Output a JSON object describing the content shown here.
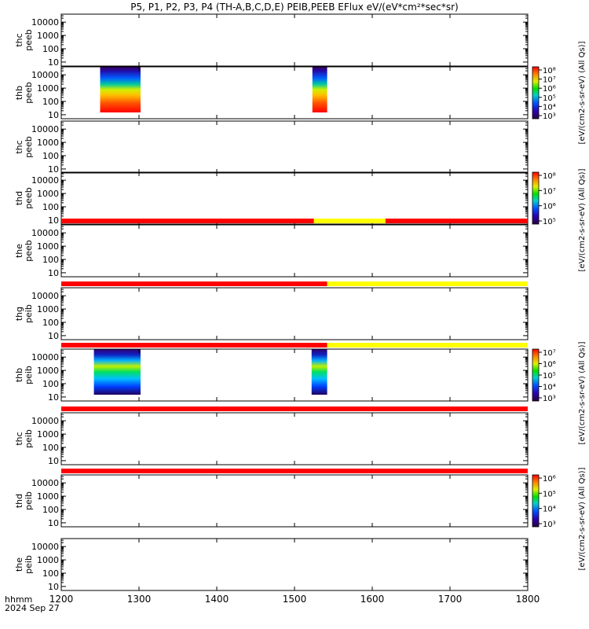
{
  "title": "P5, P1, P2, P3, P4 (TH-A,B,C,D,E) PEIB,PEEB EFlux eV/(eV*cm²*sec*sr)",
  "footer": {
    "time_label": "hhmm",
    "date_label": "2024 Sep 27"
  },
  "chart_data": {
    "type": "heatmap",
    "x_axis": {
      "range": [
        1200,
        1800
      ],
      "ticks": [
        1200,
        1300,
        1400,
        1500,
        1600,
        1700,
        1800
      ],
      "tick_labels": [
        "1200",
        "1300",
        "1400",
        "1500",
        "1600",
        "1700",
        "1800"
      ]
    },
    "y_axis": {
      "scale": "log",
      "range": [
        5,
        40000
      ],
      "ticks": [
        10,
        100,
        1000,
        10000
      ],
      "tick_labels": [
        "10",
        "100",
        "1000",
        "10000"
      ]
    },
    "panels": [
      {
        "label": [
          "thc",
          "peeb"
        ],
        "key": "thc_peeb"
      },
      {
        "label": [
          "thb",
          "peeb"
        ],
        "key": "thb_peeb",
        "data_segments": [
          [
            1250,
            1302
          ],
          [
            1523,
            1542
          ]
        ]
      },
      {
        "label": [
          "thc",
          "peeb"
        ],
        "key": "thc_peeb_2"
      },
      {
        "label": [
          "thd",
          "peeb"
        ],
        "key": "thd_peeb"
      },
      {
        "label": [
          "the",
          "peeb"
        ],
        "key": "the_peeb",
        "mode_bar": [
          {
            "from": 1200,
            "to": 1525,
            "color": "#ff0000"
          },
          {
            "from": 1525,
            "to": 1617,
            "color": "#ffff00"
          },
          {
            "from": 1617,
            "to": 1800,
            "color": "#ff0000"
          }
        ]
      },
      {
        "label": [
          "thg",
          "peib"
        ],
        "key": "thg_peib",
        "mode_bar": [
          {
            "from": 1200,
            "to": 1542,
            "color": "#ff0000"
          },
          {
            "from": 1542,
            "to": 1800,
            "color": "#ffff00"
          }
        ]
      },
      {
        "label": [
          "thb",
          "peib"
        ],
        "key": "thb_peib",
        "data_segments": [
          [
            1242,
            1302
          ],
          [
            1522,
            1542
          ]
        ],
        "mode_bar": [
          {
            "from": 1200,
            "to": 1542,
            "color": "#ff0000"
          },
          {
            "from": 1542,
            "to": 1800,
            "color": "#ffff00"
          }
        ]
      },
      {
        "label": [
          "thc",
          "peib"
        ],
        "key": "thc_peib",
        "mode_bar": [
          {
            "from": 1200,
            "to": 1800,
            "color": "#ff0000"
          }
        ]
      },
      {
        "label": [
          "thd",
          "peib"
        ],
        "key": "thd_peib",
        "mode_bar": [
          {
            "from": 1200,
            "to": 1800,
            "color": "#ff0000"
          }
        ]
      },
      {
        "label": [
          "the",
          "peib"
        ],
        "key": "the_peib"
      }
    ],
    "colorbars": [
      {
        "key": "cb_thb_peeb",
        "tick_labels": [
          "10⁸",
          "10⁷",
          "10⁶",
          "10⁵",
          "10⁴",
          "10³"
        ],
        "label": "[eV/(cm2-s-sr-eV) (All Qs)]"
      },
      {
        "key": "cb_thd_peeb",
        "tick_labels": [
          "10⁸",
          "10⁷",
          "10⁶",
          "10⁵"
        ],
        "label": "[eV/(cm2-s-sr-eV) (All Qs)]"
      },
      {
        "key": "cb_thb_peib",
        "tick_labels": [
          "10⁷",
          "10⁶",
          "10⁵",
          "10⁴",
          "10³"
        ],
        "label": "[eV/(cm2-s-sr-eV) (All Qs)]"
      },
      {
        "key": "cb_thd_peib",
        "tick_labels": [
          "10⁶",
          "10⁵",
          "10⁴",
          "10³"
        ],
        "label": "[eV/(cm2-s-sr-eV) (All Qs)]"
      }
    ]
  }
}
